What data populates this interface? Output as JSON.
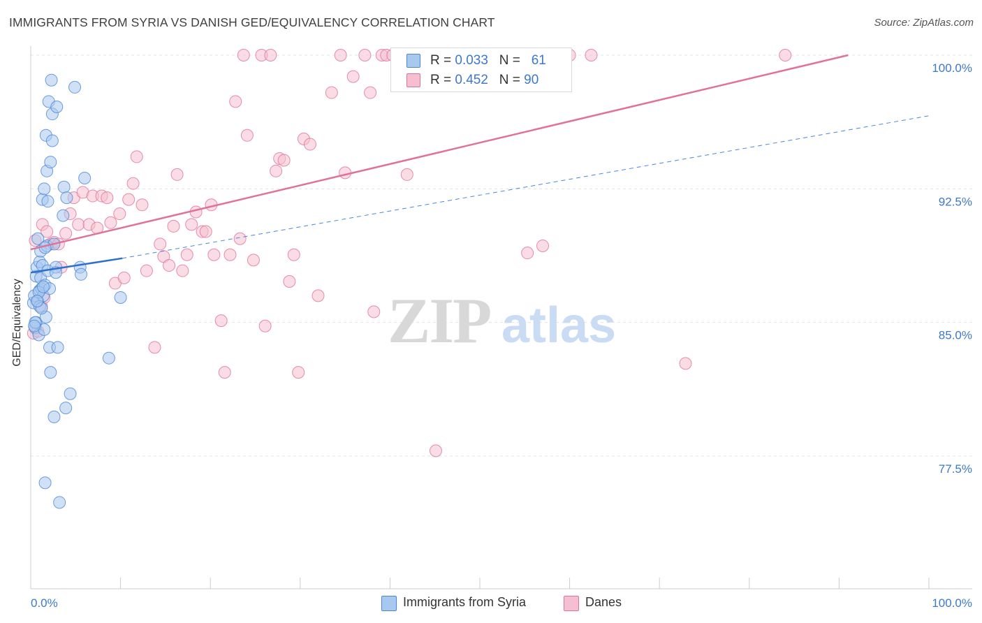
{
  "title": "IMMIGRANTS FROM SYRIA VS DANISH GED/EQUIVALENCY CORRELATION CHART",
  "source": "Source: ZipAtlas.com",
  "watermark": {
    "zip": "ZIP",
    "atlas": "atlas"
  },
  "colors": {
    "blue": "#4a86d8",
    "blue_fill": "#a9c8ef",
    "pink": "#e0729a",
    "pink_fill": "#f6bfd0",
    "axis_text": "#3e78c9",
    "grid": "#e3e3e3"
  },
  "legend": {
    "rows": [
      {
        "r_label": "R = ",
        "r_value": "0.033",
        "n_label": "N = ",
        "n_value": "61"
      },
      {
        "r_label": "R = ",
        "r_value": "0.452",
        "n_label": "N = ",
        "n_value": "90"
      }
    ]
  },
  "bottom_legend": {
    "series1": "Immigrants from Syria",
    "series2": "Danes"
  },
  "chart_data": {
    "type": "scatter",
    "title": "IMMIGRANTS FROM SYRIA VS DANISH GED/EQUIVALENCY CORRELATION CHART",
    "xlabel": "",
    "ylabel": "GED/Equivalency",
    "xlim": [
      0,
      100
    ],
    "ylim": [
      70.6,
      101.1
    ],
    "x_tick_labels": [
      "0.0%",
      "100.0%"
    ],
    "y_ticks": [
      77.5,
      85.0,
      92.5,
      100.0
    ],
    "y_tick_labels": [
      "77.5%",
      "85.0%",
      "92.5%",
      "100.0%"
    ],
    "grid": true,
    "legend_position": "top-center",
    "series": [
      {
        "name": "Immigrants from Syria",
        "color": "#4a86d8",
        "R": 0.033,
        "N": 61,
        "trend_solid": [
          [
            0,
            87.8
          ],
          [
            10.2,
            88.6
          ]
        ],
        "trend_dashed": [
          [
            10.2,
            88.6
          ],
          [
            100,
            96.6
          ]
        ],
        "points": [
          [
            0.3,
            86.1
          ],
          [
            0.4,
            86.5
          ],
          [
            0.5,
            84.7
          ],
          [
            0.6,
            85.0
          ],
          [
            0.6,
            87.6
          ],
          [
            0.7,
            88.1
          ],
          [
            0.8,
            89.7
          ],
          [
            0.8,
            86.2
          ],
          [
            0.9,
            84.3
          ],
          [
            1.0,
            86.8
          ],
          [
            1.0,
            88.4
          ],
          [
            1.1,
            89.0
          ],
          [
            1.1,
            87.5
          ],
          [
            1.2,
            86.9
          ],
          [
            1.3,
            88.2
          ],
          [
            1.3,
            91.9
          ],
          [
            1.4,
            86.5
          ],
          [
            1.5,
            84.6
          ],
          [
            1.5,
            92.5
          ],
          [
            1.6,
            87.1
          ],
          [
            1.6,
            76.0
          ],
          [
            1.7,
            85.3
          ],
          [
            1.7,
            95.5
          ],
          [
            1.8,
            93.5
          ],
          [
            1.8,
            89.3
          ],
          [
            1.9,
            91.8
          ],
          [
            1.9,
            87.9
          ],
          [
            2.0,
            97.4
          ],
          [
            2.1,
            86.9
          ],
          [
            2.1,
            83.6
          ],
          [
            2.2,
            82.2
          ],
          [
            2.2,
            94.0
          ],
          [
            2.3,
            98.6
          ],
          [
            2.4,
            96.7
          ],
          [
            2.4,
            95.2
          ],
          [
            2.6,
            79.7
          ],
          [
            2.6,
            89.4
          ],
          [
            2.8,
            88.1
          ],
          [
            2.8,
            87.8
          ],
          [
            2.9,
            97.1
          ],
          [
            3.0,
            83.6
          ],
          [
            3.2,
            74.9
          ],
          [
            3.6,
            91.0
          ],
          [
            3.7,
            92.6
          ],
          [
            3.9,
            80.2
          ],
          [
            4.0,
            92.0
          ],
          [
            4.4,
            81.0
          ],
          [
            4.9,
            98.2
          ],
          [
            5.5,
            88.1
          ],
          [
            5.6,
            87.7
          ],
          [
            6.0,
            93.1
          ],
          [
            8.7,
            83.0
          ],
          [
            10.0,
            86.4
          ],
          [
            0.5,
            85.0
          ],
          [
            1.0,
            85.9
          ],
          [
            0.4,
            84.8
          ],
          [
            1.2,
            85.8
          ],
          [
            0.9,
            86.7
          ],
          [
            1.4,
            87.0
          ],
          [
            0.7,
            86.2
          ],
          [
            1.6,
            89.2
          ]
        ]
      },
      {
        "name": "Danes",
        "color": "#e0729a",
        "R": 0.452,
        "N": 90,
        "trend_solid": [
          [
            0,
            89.1
          ],
          [
            91,
            100.0
          ]
        ],
        "points": [
          [
            0.3,
            84.4
          ],
          [
            0.5,
            89.6
          ],
          [
            0.8,
            84.5
          ],
          [
            1.2,
            85.9
          ],
          [
            1.3,
            90.5
          ],
          [
            1.5,
            86.4
          ],
          [
            1.8,
            90.1
          ],
          [
            2.2,
            89.4
          ],
          [
            2.6,
            89.5
          ],
          [
            3.1,
            89.4
          ],
          [
            3.4,
            88.1
          ],
          [
            3.9,
            90.0
          ],
          [
            4.4,
            91.1
          ],
          [
            4.8,
            92.0
          ],
          [
            5.3,
            90.5
          ],
          [
            5.8,
            92.3
          ],
          [
            6.5,
            90.5
          ],
          [
            6.9,
            92.1
          ],
          [
            7.4,
            90.3
          ],
          [
            7.9,
            92.1
          ],
          [
            8.5,
            92.0
          ],
          [
            8.9,
            90.6
          ],
          [
            9.4,
            87.2
          ],
          [
            9.9,
            91.1
          ],
          [
            10.4,
            87.5
          ],
          [
            10.9,
            91.9
          ],
          [
            11.4,
            92.8
          ],
          [
            11.8,
            94.3
          ],
          [
            12.4,
            91.6
          ],
          [
            12.9,
            87.9
          ],
          [
            13.8,
            83.6
          ],
          [
            14.4,
            89.4
          ],
          [
            14.8,
            88.7
          ],
          [
            15.4,
            88.2
          ],
          [
            15.9,
            90.4
          ],
          [
            16.3,
            93.3
          ],
          [
            16.9,
            87.9
          ],
          [
            17.4,
            88.8
          ],
          [
            17.9,
            90.5
          ],
          [
            18.4,
            91.2
          ],
          [
            19.1,
            90.1
          ],
          [
            19.5,
            90.1
          ],
          [
            20.1,
            91.6
          ],
          [
            20.4,
            88.8
          ],
          [
            21.2,
            85.1
          ],
          [
            21.6,
            82.2
          ],
          [
            22.2,
            88.8
          ],
          [
            22.8,
            97.4
          ],
          [
            23.3,
            89.7
          ],
          [
            23.7,
            100.0
          ],
          [
            24.1,
            95.5
          ],
          [
            24.8,
            88.5
          ],
          [
            25.7,
            100.0
          ],
          [
            26.1,
            84.8
          ],
          [
            26.7,
            100.0
          ],
          [
            27.3,
            93.5
          ],
          [
            27.7,
            94.2
          ],
          [
            28.2,
            94.1
          ],
          [
            28.8,
            87.3
          ],
          [
            29.3,
            88.8
          ],
          [
            29.8,
            82.2
          ],
          [
            30.4,
            95.3
          ],
          [
            31.1,
            95.0
          ],
          [
            32.0,
            86.5
          ],
          [
            33.5,
            97.9
          ],
          [
            34.5,
            100.0
          ],
          [
            35.0,
            93.4
          ],
          [
            35.9,
            98.8
          ],
          [
            37.2,
            100.0
          ],
          [
            37.8,
            97.9
          ],
          [
            38.2,
            85.6
          ],
          [
            39.1,
            100.0
          ],
          [
            39.6,
            100.0
          ],
          [
            40.3,
            100.0
          ],
          [
            41.2,
            100.0
          ],
          [
            41.8,
            100.0
          ],
          [
            41.9,
            93.3
          ],
          [
            44.0,
            100.0
          ],
          [
            44.7,
            100.0
          ],
          [
            45.1,
            77.8
          ],
          [
            47.5,
            100.0
          ],
          [
            48.9,
            100.0
          ],
          [
            55.3,
            88.9
          ],
          [
            57.0,
            89.3
          ],
          [
            54.1,
            100.0
          ],
          [
            58.5,
            100.0
          ],
          [
            60.0,
            100.0
          ],
          [
            62.4,
            100.0
          ],
          [
            72.9,
            82.7
          ],
          [
            84.0,
            100.0
          ]
        ]
      }
    ]
  }
}
